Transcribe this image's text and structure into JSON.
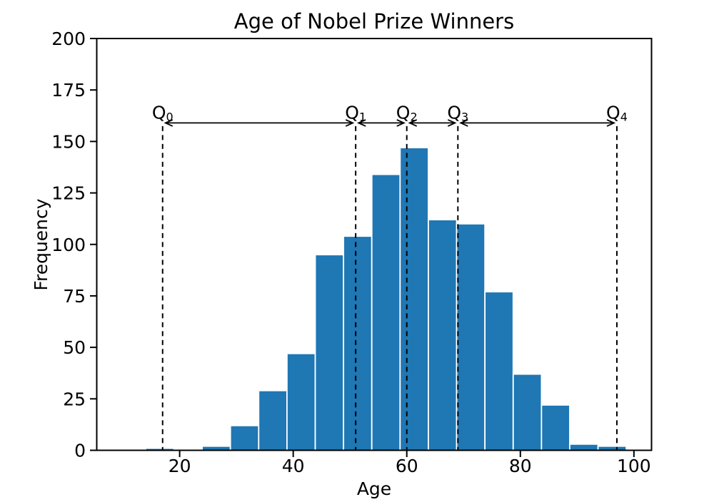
{
  "figure": {
    "background": "#ffffff"
  },
  "chart_data": {
    "type": "histogram",
    "title": "Age of Nobel Prize Winners",
    "xlabel": "Age",
    "ylabel": "Frequency",
    "bar_color": "#1f77b4",
    "bar_edge_color": "#ffffff",
    "axis_color": "#000000",
    "grid": false,
    "legend": null,
    "bin_start": 14.0,
    "bin_width": 4.98,
    "frequencies": [
      1,
      0,
      2,
      12,
      29,
      47,
      95,
      104,
      134,
      147,
      112,
      110,
      77,
      37,
      22,
      3,
      2
    ],
    "xticks": [
      20,
      40,
      60,
      80,
      100
    ],
    "yticks": [
      0,
      25,
      50,
      75,
      100,
      125,
      150,
      175,
      200
    ],
    "xlim": [
      5.4,
      103.1
    ],
    "ylim": [
      0,
      200
    ],
    "quartile_markers": [
      {
        "label": "Q",
        "subscript": "0",
        "age": 17
      },
      {
        "label": "Q",
        "subscript": "1",
        "age": 51
      },
      {
        "label": "Q",
        "subscript": "2",
        "age": 60
      },
      {
        "label": "Q",
        "subscript": "3",
        "age": 69
      },
      {
        "label": "Q",
        "subscript": "4",
        "age": 97
      }
    ],
    "annotation_y": 159
  }
}
